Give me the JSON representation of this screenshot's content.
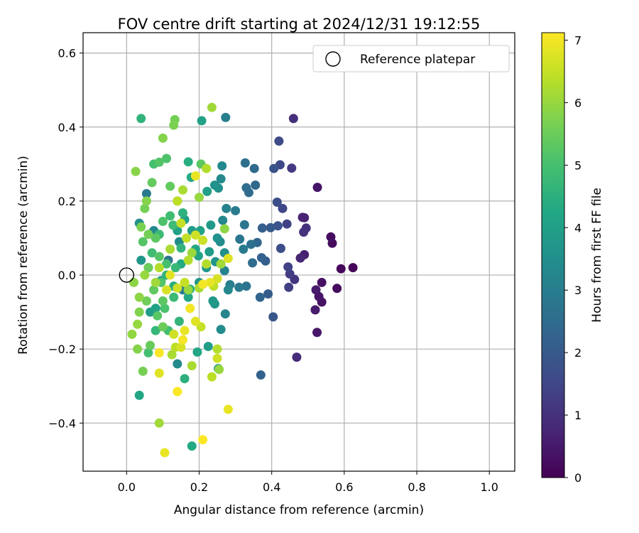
{
  "chart_data": {
    "type": "scatter",
    "title": "FOV centre drift starting at 2024/12/31 19:12:55",
    "xlabel": "Angular distance from reference (arcmin)",
    "ylabel": "Rotation from reference (arcmin)",
    "xlim": [
      -0.12,
      1.07
    ],
    "ylim": [
      -0.53,
      0.655
    ],
    "xticks": [
      0.0,
      0.2,
      0.4,
      0.6,
      0.8,
      1.0
    ],
    "xtick_labels": [
      "0.0",
      "0.2",
      "0.4",
      "0.6",
      "0.8",
      "1.0"
    ],
    "yticks": [
      0.6,
      0.4,
      0.2,
      0.0,
      -0.2,
      -0.4
    ],
    "ytick_labels": [
      "0.6",
      "0.4",
      "0.2",
      "0.0",
      "−0.2",
      "−0.4"
    ],
    "grid": true,
    "legend": {
      "position": "top-right",
      "entries": [
        {
          "label": "Reference platepar",
          "marker": "open-circle"
        }
      ]
    },
    "reference_point": {
      "x": 0.0,
      "y": 0.0
    },
    "colorbar": {
      "label": "Hours from first FF file",
      "min": 0,
      "max": 7.12,
      "ticks": [
        0,
        1,
        2,
        3,
        4,
        5,
        6,
        7
      ],
      "tick_labels": [
        "0",
        "1",
        "2",
        "3",
        "4",
        "5",
        "6",
        "7"
      ],
      "colormap": "viridis"
    },
    "points": [
      {
        "x": 0.624,
        "y": 0.02,
        "h": 0.1
      },
      {
        "x": 0.591,
        "y": 0.017,
        "h": 0.15
      },
      {
        "x": 0.58,
        "y": -0.036,
        "h": 0.2
      },
      {
        "x": 0.567,
        "y": 0.086,
        "h": 0.2
      },
      {
        "x": 0.563,
        "y": 0.103,
        "h": 0.25
      },
      {
        "x": 0.538,
        "y": -0.02,
        "h": 0.3
      },
      {
        "x": 0.538,
        "y": -0.073,
        "h": 0.35
      },
      {
        "x": 0.53,
        "y": -0.058,
        "h": 0.4
      },
      {
        "x": 0.526,
        "y": 0.237,
        "h": 0.4
      },
      {
        "x": 0.525,
        "y": -0.155,
        "h": 0.45
      },
      {
        "x": 0.522,
        "y": -0.04,
        "h": 0.5
      },
      {
        "x": 0.52,
        "y": -0.094,
        "h": 0.55
      },
      {
        "x": 0.49,
        "y": 0.055,
        "h": 0.6
      },
      {
        "x": 0.49,
        "y": 0.155,
        "h": 0.65
      },
      {
        "x": 0.485,
        "y": 0.156,
        "h": 0.7
      },
      {
        "x": 0.479,
        "y": 0.046,
        "h": 0.75
      },
      {
        "x": 0.469,
        "y": -0.222,
        "h": 0.9
      },
      {
        "x": 0.46,
        "y": 0.423,
        "h": 0.95
      },
      {
        "x": 0.495,
        "y": 0.127,
        "h": 1.0
      },
      {
        "x": 0.488,
        "y": 0.116,
        "h": 1.05
      },
      {
        "x": 0.463,
        "y": -0.012,
        "h": 1.1
      },
      {
        "x": 0.455,
        "y": 0.289,
        "h": 1.2
      },
      {
        "x": 0.45,
        "y": 0.003,
        "h": 1.25
      },
      {
        "x": 0.447,
        "y": -0.033,
        "h": 1.3
      },
      {
        "x": 0.442,
        "y": 0.138,
        "h": 1.35
      },
      {
        "x": 0.445,
        "y": 0.022,
        "h": 1.4
      },
      {
        "x": 0.43,
        "y": 0.18,
        "h": 1.5
      },
      {
        "x": 0.423,
        "y": 0.298,
        "h": 1.55
      },
      {
        "x": 0.42,
        "y": 0.362,
        "h": 1.6
      },
      {
        "x": 0.425,
        "y": 0.072,
        "h": 1.65
      },
      {
        "x": 0.415,
        "y": 0.197,
        "h": 1.7
      },
      {
        "x": 0.417,
        "y": 0.133,
        "h": 1.8
      },
      {
        "x": 0.406,
        "y": 0.288,
        "h": 1.85
      },
      {
        "x": 0.404,
        "y": -0.113,
        "h": 1.9
      },
      {
        "x": 0.397,
        "y": 0.128,
        "h": 2.0
      },
      {
        "x": 0.39,
        "y": -0.051,
        "h": 2.05
      },
      {
        "x": 0.383,
        "y": 0.038,
        "h": 2.1
      },
      {
        "x": 0.374,
        "y": 0.127,
        "h": 2.15
      },
      {
        "x": 0.372,
        "y": 0.047,
        "h": 2.2
      },
      {
        "x": 0.37,
        "y": -0.27,
        "h": 2.25
      },
      {
        "x": 0.368,
        "y": -0.06,
        "h": 2.3
      },
      {
        "x": 0.36,
        "y": 0.088,
        "h": 2.35
      },
      {
        "x": 0.355,
        "y": 0.243,
        "h": 2.4
      },
      {
        "x": 0.352,
        "y": 0.288,
        "h": 2.45
      },
      {
        "x": 0.347,
        "y": 0.033,
        "h": 2.5
      },
      {
        "x": 0.337,
        "y": 0.223,
        "h": 2.5
      },
      {
        "x": 0.33,
        "y": 0.236,
        "h": 2.55
      },
      {
        "x": 0.327,
        "y": 0.303,
        "h": 2.6
      },
      {
        "x": 0.343,
        "y": 0.083,
        "h": 2.65
      },
      {
        "x": 0.33,
        "y": -0.03,
        "h": 2.7
      },
      {
        "x": 0.325,
        "y": 0.136,
        "h": 2.75
      },
      {
        "x": 0.312,
        "y": 0.097,
        "h": 2.8
      },
      {
        "x": 0.31,
        "y": -0.033,
        "h": 2.85
      },
      {
        "x": 0.322,
        "y": 0.07,
        "h": 2.9
      },
      {
        "x": 0.3,
        "y": 0.174,
        "h": 2.95
      },
      {
        "x": 0.285,
        "y": -0.026,
        "h": 3.0
      },
      {
        "x": 0.273,
        "y": 0.426,
        "h": 3.05
      },
      {
        "x": 0.275,
        "y": 0.18,
        "h": 3.1
      },
      {
        "x": 0.27,
        "y": 0.012,
        "h": 3.15
      },
      {
        "x": 0.272,
        "y": -0.105,
        "h": 3.2
      },
      {
        "x": 0.265,
        "y": 0.148,
        "h": 3.25
      },
      {
        "x": 0.263,
        "y": 0.295,
        "h": 3.3
      },
      {
        "x": 0.26,
        "y": 0.26,
        "h": 3.35
      },
      {
        "x": 0.258,
        "y": 0.09,
        "h": 3.4
      },
      {
        "x": 0.26,
        "y": -0.147,
        "h": 3.45
      },
      {
        "x": 0.253,
        "y": -0.253,
        "h": 3.5
      },
      {
        "x": 0.253,
        "y": 0.235,
        "h": 3.55
      },
      {
        "x": 0.243,
        "y": 0.243,
        "h": 3.6
      },
      {
        "x": 0.245,
        "y": 0.036,
        "h": 3.65
      },
      {
        "x": 0.243,
        "y": -0.078,
        "h": 3.7
      },
      {
        "x": 0.238,
        "y": -0.07,
        "h": 3.8
      },
      {
        "x": 0.232,
        "y": 0.135,
        "h": 3.85
      },
      {
        "x": 0.228,
        "y": 0.063,
        "h": 3.9
      },
      {
        "x": 0.225,
        "y": -0.193,
        "h": 3.95
      },
      {
        "x": 0.222,
        "y": 0.226,
        "h": 4.0
      },
      {
        "x": 0.207,
        "y": 0.417,
        "h": 4.05
      },
      {
        "x": 0.203,
        "y": 0.12,
        "h": 4.1
      },
      {
        "x": 0.198,
        "y": 0.052,
        "h": 4.15
      },
      {
        "x": 0.195,
        "y": -0.208,
        "h": 4.2
      },
      {
        "x": 0.19,
        "y": 0.07,
        "h": 4.25
      },
      {
        "x": 0.18,
        "y": -0.462,
        "h": 4.3
      },
      {
        "x": 0.178,
        "y": 0.264,
        "h": 4.35
      },
      {
        "x": 0.175,
        "y": -0.038,
        "h": 4.4
      },
      {
        "x": 0.17,
        "y": 0.306,
        "h": 4.45
      },
      {
        "x": 0.16,
        "y": -0.28,
        "h": 4.5
      },
      {
        "x": 0.155,
        "y": 0.168,
        "h": 4.55
      },
      {
        "x": 0.15,
        "y": 0.073,
        "h": 4.6
      },
      {
        "x": 0.145,
        "y": -0.125,
        "h": 4.65
      },
      {
        "x": 0.14,
        "y": 0.2,
        "h": 4.7
      },
      {
        "x": 0.135,
        "y": 0.02,
        "h": 4.75
      },
      {
        "x": 0.13,
        "y": -0.06,
        "h": 4.8
      },
      {
        "x": 0.128,
        "y": 0.135,
        "h": 4.85
      },
      {
        "x": 0.12,
        "y": 0.16,
        "h": 4.9
      },
      {
        "x": 0.115,
        "y": -0.15,
        "h": 4.95
      },
      {
        "x": 0.11,
        "y": 0.03,
        "h": 5.0
      },
      {
        "x": 0.105,
        "y": -0.09,
        "h": 5.05
      },
      {
        "x": 0.1,
        "y": 0.145,
        "h": 5.1
      },
      {
        "x": 0.095,
        "y": -0.02,
        "h": 5.15
      },
      {
        "x": 0.09,
        "y": 0.05,
        "h": 5.2
      },
      {
        "x": 0.085,
        "y": -0.11,
        "h": 5.25
      },
      {
        "x": 0.08,
        "y": 0.1,
        "h": 5.3
      },
      {
        "x": 0.075,
        "y": -0.04,
        "h": 5.35
      },
      {
        "x": 0.07,
        "y": 0.25,
        "h": 5.4
      },
      {
        "x": 0.065,
        "y": -0.19,
        "h": 5.45
      },
      {
        "x": 0.06,
        "y": 0.02,
        "h": 5.5
      },
      {
        "x": 0.055,
        "y": -0.07,
        "h": 5.55
      },
      {
        "x": 0.05,
        "y": 0.18,
        "h": 5.6
      },
      {
        "x": 0.045,
        "y": -0.26,
        "h": 5.65
      },
      {
        "x": 0.04,
        "y": 0.13,
        "h": 5.7
      },
      {
        "x": 0.035,
        "y": -0.1,
        "h": 5.75
      },
      {
        "x": 0.03,
        "y": -0.2,
        "h": 5.8
      },
      {
        "x": 0.025,
        "y": 0.28,
        "h": 5.85
      },
      {
        "x": 0.02,
        "y": -0.02,
        "h": 5.9
      },
      {
        "x": 0.015,
        "y": -0.16,
        "h": 5.95
      },
      {
        "x": 0.04,
        "y": 0.423,
        "h": 4.6
      },
      {
        "x": 0.035,
        "y": -0.325,
        "h": 4.2
      },
      {
        "x": 0.133,
        "y": 0.42,
        "h": 5.6
      },
      {
        "x": 0.13,
        "y": 0.405,
        "h": 5.7
      },
      {
        "x": 0.1,
        "y": 0.37,
        "h": 5.8
      },
      {
        "x": 0.205,
        "y": 0.3,
        "h": 5.3
      },
      {
        "x": 0.235,
        "y": 0.453,
        "h": 6.1
      },
      {
        "x": 0.22,
        "y": 0.288,
        "h": 6.3
      },
      {
        "x": 0.19,
        "y": 0.268,
        "h": 6.9
      },
      {
        "x": 0.2,
        "y": 0.21,
        "h": 6.0
      },
      {
        "x": 0.155,
        "y": 0.23,
        "h": 6.2
      },
      {
        "x": 0.14,
        "y": 0.2,
        "h": 6.4
      },
      {
        "x": 0.15,
        "y": 0.14,
        "h": 6.5
      },
      {
        "x": 0.19,
        "y": 0.108,
        "h": 6.6
      },
      {
        "x": 0.21,
        "y": 0.094,
        "h": 6.55
      },
      {
        "x": 0.165,
        "y": 0.1,
        "h": 6.45
      },
      {
        "x": 0.27,
        "y": 0.125,
        "h": 5.9
      },
      {
        "x": 0.28,
        "y": 0.045,
        "h": 6.8
      },
      {
        "x": 0.22,
        "y": 0.03,
        "h": 6.3
      },
      {
        "x": 0.26,
        "y": 0.03,
        "h": 6.1
      },
      {
        "x": 0.25,
        "y": -0.01,
        "h": 6.7
      },
      {
        "x": 0.23,
        "y": -0.02,
        "h": 6.9
      },
      {
        "x": 0.21,
        "y": -0.025,
        "h": 7.0
      },
      {
        "x": 0.24,
        "y": -0.03,
        "h": 6.4
      },
      {
        "x": 0.2,
        "y": -0.035,
        "h": 6.2
      },
      {
        "x": 0.17,
        "y": -0.04,
        "h": 6.0
      },
      {
        "x": 0.16,
        "y": -0.02,
        "h": 6.5
      },
      {
        "x": 0.14,
        "y": -0.035,
        "h": 6.6
      },
      {
        "x": 0.11,
        "y": -0.04,
        "h": 6.7
      },
      {
        "x": 0.12,
        "y": 0.0,
        "h": 6.8
      },
      {
        "x": 0.09,
        "y": 0.02,
        "h": 6.3
      },
      {
        "x": 0.08,
        "y": -0.02,
        "h": 6.1
      },
      {
        "x": 0.175,
        "y": -0.09,
        "h": 7.0
      },
      {
        "x": 0.16,
        "y": -0.15,
        "h": 6.9
      },
      {
        "x": 0.19,
        "y": -0.125,
        "h": 6.8
      },
      {
        "x": 0.205,
        "y": -0.14,
        "h": 6.5
      },
      {
        "x": 0.13,
        "y": -0.16,
        "h": 6.6
      },
      {
        "x": 0.155,
        "y": -0.175,
        "h": 7.0
      },
      {
        "x": 0.15,
        "y": -0.195,
        "h": 6.7
      },
      {
        "x": 0.135,
        "y": -0.195,
        "h": 6.4
      },
      {
        "x": 0.09,
        "y": -0.21,
        "h": 7.05
      },
      {
        "x": 0.125,
        "y": -0.215,
        "h": 6.2
      },
      {
        "x": 0.25,
        "y": -0.2,
        "h": 6.3
      },
      {
        "x": 0.25,
        "y": -0.225,
        "h": 6.6
      },
      {
        "x": 0.255,
        "y": -0.255,
        "h": 6.0
      },
      {
        "x": 0.18,
        "y": -0.245,
        "h": 6.2
      },
      {
        "x": 0.09,
        "y": -0.265,
        "h": 6.8
      },
      {
        "x": 0.235,
        "y": -0.275,
        "h": 6.4
      },
      {
        "x": 0.14,
        "y": -0.315,
        "h": 7.1
      },
      {
        "x": 0.28,
        "y": -0.363,
        "h": 6.9
      },
      {
        "x": 0.21,
        "y": -0.445,
        "h": 7.1
      },
      {
        "x": 0.105,
        "y": -0.48,
        "h": 6.9
      },
      {
        "x": 0.09,
        "y": -0.4,
        "h": 6.1
      },
      {
        "x": 0.03,
        "y": -0.133,
        "h": 6.0
      },
      {
        "x": 0.035,
        "y": -0.06,
        "h": 5.9
      },
      {
        "x": 0.05,
        "y": 0.0,
        "h": 6.0
      },
      {
        "x": 0.12,
        "y": 0.07,
        "h": 6.2
      },
      {
        "x": 0.17,
        "y": 0.04,
        "h": 6.3
      },
      {
        "x": 0.18,
        "y": 0.06,
        "h": 6.05
      },
      {
        "x": 0.045,
        "y": 0.09,
        "h": 5.2
      },
      {
        "x": 0.06,
        "y": 0.11,
        "h": 5.6
      },
      {
        "x": 0.055,
        "y": 0.2,
        "h": 5.8
      },
      {
        "x": 0.075,
        "y": 0.3,
        "h": 5.0
      },
      {
        "x": 0.09,
        "y": 0.305,
        "h": 5.2
      },
      {
        "x": 0.11,
        "y": 0.315,
        "h": 5.1
      },
      {
        "x": 0.12,
        "y": 0.24,
        "h": 5.4
      },
      {
        "x": 0.09,
        "y": 0.11,
        "h": 4.8
      },
      {
        "x": 0.07,
        "y": 0.06,
        "h": 4.9
      },
      {
        "x": 0.1,
        "y": -0.07,
        "h": 5.3
      },
      {
        "x": 0.08,
        "y": -0.15,
        "h": 4.7
      },
      {
        "x": 0.06,
        "y": -0.21,
        "h": 5.0
      },
      {
        "x": 0.1,
        "y": -0.14,
        "h": 5.5
      },
      {
        "x": 0.11,
        "y": 0.0,
        "h": 4.6
      },
      {
        "x": 0.13,
        "y": -0.03,
        "h": 4.4
      },
      {
        "x": 0.15,
        "y": 0.03,
        "h": 4.3
      },
      {
        "x": 0.17,
        "y": -0.06,
        "h": 4.2
      },
      {
        "x": 0.14,
        "y": 0.12,
        "h": 4.1
      },
      {
        "x": 0.16,
        "y": 0.15,
        "h": 4.0
      },
      {
        "x": 0.18,
        "y": 0.12,
        "h": 3.9
      },
      {
        "x": 0.22,
        "y": 0.02,
        "h": 3.8
      },
      {
        "x": 0.2,
        "y": -0.02,
        "h": 3.7
      },
      {
        "x": 0.25,
        "y": 0.1,
        "h": 3.6
      },
      {
        "x": 0.27,
        "y": 0.06,
        "h": 3.5
      },
      {
        "x": 0.28,
        "y": -0.04,
        "h": 3.3
      },
      {
        "x": 0.06,
        "y": 0.02,
        "h": 3.3
      },
      {
        "x": 0.035,
        "y": 0.14,
        "h": 3.5
      },
      {
        "x": 0.04,
        "y": 0.04,
        "h": 3.7
      },
      {
        "x": 0.055,
        "y": 0.22,
        "h": 2.9
      },
      {
        "x": 0.075,
        "y": 0.12,
        "h": 3.3
      },
      {
        "x": 0.095,
        "y": -0.015,
        "h": 4.0
      },
      {
        "x": 0.065,
        "y": -0.1,
        "h": 3.9
      },
      {
        "x": 0.08,
        "y": -0.09,
        "h": 4.1
      },
      {
        "x": 0.145,
        "y": 0.09,
        "h": 3.4
      },
      {
        "x": 0.155,
        "y": -0.04,
        "h": 3.0
      },
      {
        "x": 0.115,
        "y": 0.04,
        "h": 2.8
      },
      {
        "x": 0.14,
        "y": -0.24,
        "h": 3.4
      }
    ]
  }
}
